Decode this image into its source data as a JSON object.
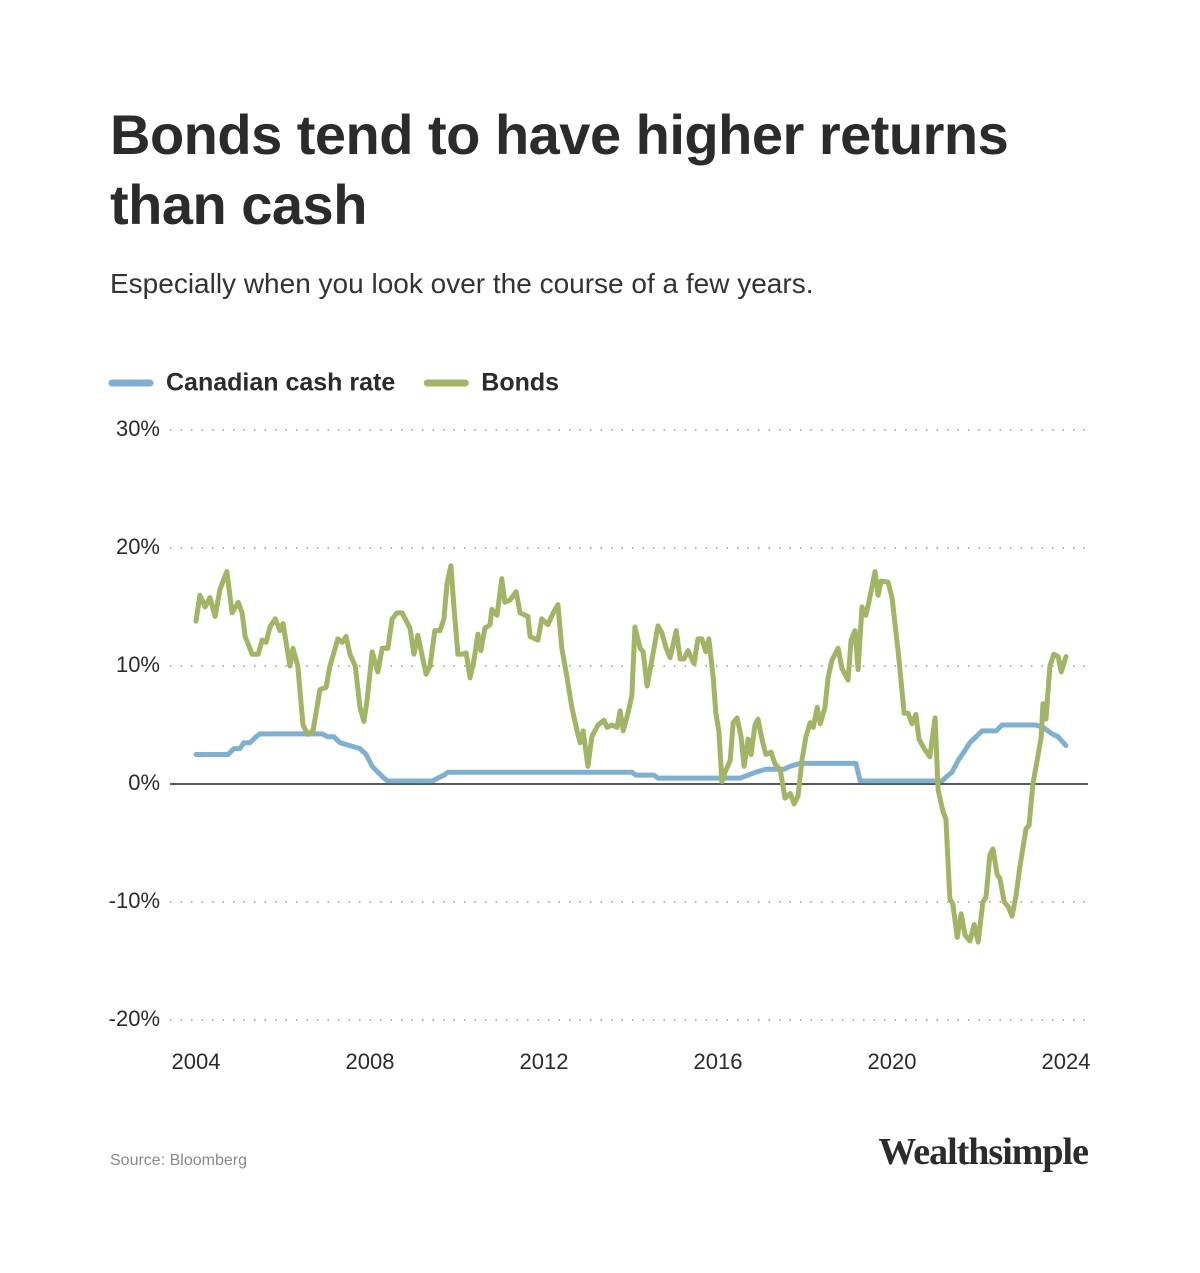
{
  "chart_data": {
    "type": "line",
    "title": "Bonds tend to have higher returns than cash",
    "subtitle": "Especially when you look over the course of a few years.",
    "source": "Source: Bloomberg",
    "brand": "Wealthsimple",
    "xlim": [
      2004,
      2024
    ],
    "xticks": [
      2004,
      2008,
      2012,
      2016,
      2020,
      2024
    ],
    "ylim": [
      -20,
      30
    ],
    "yticks": [
      {
        "value": 30,
        "label": "30%"
      },
      {
        "value": 20,
        "label": "20%"
      },
      {
        "value": 10,
        "label": "10%"
      },
      {
        "value": 0,
        "label": "0%"
      },
      {
        "value": -10,
        "label": "-10%"
      },
      {
        "value": -20,
        "label": "-20%"
      }
    ],
    "grid": true,
    "legend": "top-left",
    "series": [
      {
        "name": "Canadian cash rate",
        "color": "#7fb0d2",
        "x": [
          2004.0,
          2004.74,
          2004.87,
          2005.01,
          2005.1,
          2005.24,
          2005.38,
          2005.47,
          2006.9,
          2007.03,
          2007.17,
          2007.31,
          2007.77,
          2007.91,
          2008.05,
          2008.18,
          2008.32,
          2008.41,
          2009.43,
          2009.56,
          2009.7,
          2009.79,
          2014.02,
          2014.11,
          2014.53,
          2014.62,
          2016.51,
          2016.69,
          2016.87,
          2017.1,
          2017.52,
          2017.66,
          2017.89,
          2019.17,
          2019.27,
          2021.15,
          2021.29,
          2021.38,
          2021.52,
          2021.66,
          2021.79,
          2021.93,
          2022.07,
          2022.39,
          2022.53,
          2023.31,
          2023.49,
          2023.68,
          2023.82,
          2024.0
        ],
        "values": [
          2.5,
          2.5,
          3.0,
          3.0,
          3.5,
          3.5,
          4.0,
          4.25,
          4.25,
          4.0,
          4.0,
          3.5,
          3.0,
          2.5,
          1.5,
          1.0,
          0.5,
          0.25,
          0.25,
          0.5,
          0.75,
          1.0,
          1.0,
          0.75,
          0.75,
          0.5,
          0.5,
          0.75,
          1.0,
          1.25,
          1.25,
          1.5,
          1.75,
          1.75,
          0.25,
          0.25,
          0.75,
          1.0,
          2.0,
          2.75,
          3.5,
          4.0,
          4.5,
          4.5,
          5.0,
          5.0,
          4.75,
          4.25,
          4.0,
          3.25
        ]
      },
      {
        "name": "Bonds",
        "color": "#a3b565",
        "x": [
          2004.0,
          2004.09,
          2004.21,
          2004.32,
          2004.44,
          2004.55,
          2004.71,
          2004.83,
          2004.97,
          2005.06,
          2005.13,
          2005.29,
          2005.43,
          2005.52,
          2005.61,
          2005.7,
          2005.82,
          2005.93,
          2006.0,
          2006.16,
          2006.23,
          2006.34,
          2006.46,
          2006.57,
          2006.69,
          2006.85,
          2006.99,
          2007.08,
          2007.26,
          2007.36,
          2007.45,
          2007.54,
          2007.66,
          2007.77,
          2007.86,
          2007.93,
          2008.05,
          2008.18,
          2008.28,
          2008.41,
          2008.51,
          2008.62,
          2008.74,
          2008.92,
          2009.01,
          2009.1,
          2009.29,
          2009.38,
          2009.49,
          2009.61,
          2009.7,
          2009.77,
          2009.86,
          2009.93,
          2010.02,
          2010.12,
          2010.21,
          2010.3,
          2010.39,
          2010.48,
          2010.55,
          2010.64,
          2010.76,
          2010.8,
          2010.92,
          2011.03,
          2011.1,
          2011.22,
          2011.36,
          2011.45,
          2011.63,
          2011.68,
          2011.86,
          2011.95,
          2012.09,
          2012.21,
          2012.32,
          2012.41,
          2012.53,
          2012.64,
          2012.76,
          2012.83,
          2012.9,
          2013.01,
          2013.1,
          2013.24,
          2013.38,
          2013.45,
          2013.56,
          2013.68,
          2013.75,
          2013.82,
          2013.93,
          2014.02,
          2014.09,
          2014.21,
          2014.28,
          2014.37,
          2014.48,
          2014.62,
          2014.71,
          2014.81,
          2014.9,
          2015.04,
          2015.13,
          2015.22,
          2015.31,
          2015.45,
          2015.54,
          2015.63,
          2015.72,
          2015.79,
          2015.89,
          2015.95,
          2016.02,
          2016.09,
          2016.16,
          2016.28,
          2016.35,
          2016.44,
          2016.53,
          2016.6,
          2016.69,
          2016.76,
          2016.85,
          2016.92,
          2017.01,
          2017.1,
          2017.22,
          2017.31,
          2017.43,
          2017.54,
          2017.66,
          2017.75,
          2017.84,
          2017.93,
          2018.02,
          2018.12,
          2018.19,
          2018.28,
          2018.35,
          2018.46,
          2018.53,
          2018.62,
          2018.76,
          2018.85,
          2018.99,
          2019.06,
          2019.15,
          2019.22,
          2019.31,
          2019.4,
          2019.49,
          2019.61,
          2019.68,
          2019.75,
          2019.91,
          2020.0,
          2020.14,
          2020.28,
          2020.37,
          2020.46,
          2020.55,
          2020.62,
          2020.74,
          2020.87,
          2020.99,
          2021.06,
          2021.17,
          2021.24,
          2021.33,
          2021.4,
          2021.5,
          2021.59,
          2021.68,
          2021.79,
          2021.89,
          2021.98,
          2022.09,
          2022.16,
          2022.25,
          2022.32,
          2022.42,
          2022.48,
          2022.58,
          2022.67,
          2022.76,
          2022.85,
          2022.94,
          2023.08,
          2023.15,
          2023.24,
          2023.36,
          2023.43,
          2023.47,
          2023.54,
          2023.63,
          2023.72,
          2023.82,
          2023.89,
          2024.0
        ],
        "values": [
          13.8,
          16,
          15,
          15.8,
          14.2,
          16.5,
          18,
          14.5,
          15.4,
          14.5,
          12.5,
          11,
          11,
          12.2,
          12,
          13.3,
          14,
          13,
          13.6,
          10,
          11.5,
          10,
          5,
          4.2,
          4.5,
          8,
          8.2,
          10,
          12.3,
          12,
          12.5,
          11,
          10,
          6.5,
          5.3,
          7,
          11.2,
          9.5,
          11.5,
          11.5,
          14,
          14.5,
          14.5,
          13.2,
          11,
          12.6,
          9.3,
          10,
          13,
          13,
          14,
          17,
          18.5,
          15,
          11,
          11,
          11.1,
          9,
          10.5,
          12.7,
          11.3,
          13.2,
          13.5,
          14.8,
          14.3,
          17.4,
          15.4,
          15.6,
          16.3,
          14.5,
          14.2,
          12.5,
          12.2,
          14,
          13.5,
          14.5,
          15.2,
          11.5,
          9,
          6.5,
          4.5,
          3.5,
          4.5,
          1.5,
          4,
          5,
          5.4,
          4.8,
          5,
          4.8,
          6.2,
          4.5,
          6,
          7.5,
          13.3,
          11.5,
          11.2,
          8.3,
          10.5,
          13.4,
          12.8,
          11.5,
          10.7,
          13,
          10.6,
          10.6,
          11.3,
          10.2,
          12.3,
          12.3,
          11.2,
          12.3,
          9,
          6,
          4.5,
          0.2,
          1,
          2,
          5.2,
          5.6,
          4,
          1.5,
          3.8,
          2.5,
          5,
          5.5,
          3.8,
          2.5,
          2.7,
          1.7,
          1.2,
          -1.2,
          -0.8,
          -1.7,
          -1,
          2,
          4,
          5.2,
          4.8,
          6.5,
          5.1,
          6.5,
          9,
          10.5,
          11.5,
          9.8,
          8.8,
          12.2,
          13,
          9.7,
          15,
          14.3,
          15.8,
          18,
          16,
          17.2,
          17.1,
          15.8,
          11.3,
          6,
          6,
          5.1,
          5.9,
          3.8,
          3,
          2.3,
          5.6,
          -0.5,
          -2.3,
          -3,
          -9.7,
          -10.2,
          -13,
          -11,
          -12.8,
          -13.3,
          -11.9,
          -13.4,
          -10,
          -9.6,
          -6,
          -5.5,
          -7.7,
          -8,
          -10,
          -10.4,
          -11.2,
          -9.5,
          -7,
          -3.8,
          -3.5,
          0,
          2.5,
          4,
          6.8,
          5.5,
          10,
          11,
          10.8,
          9.5,
          10.8
        ]
      }
    ]
  }
}
